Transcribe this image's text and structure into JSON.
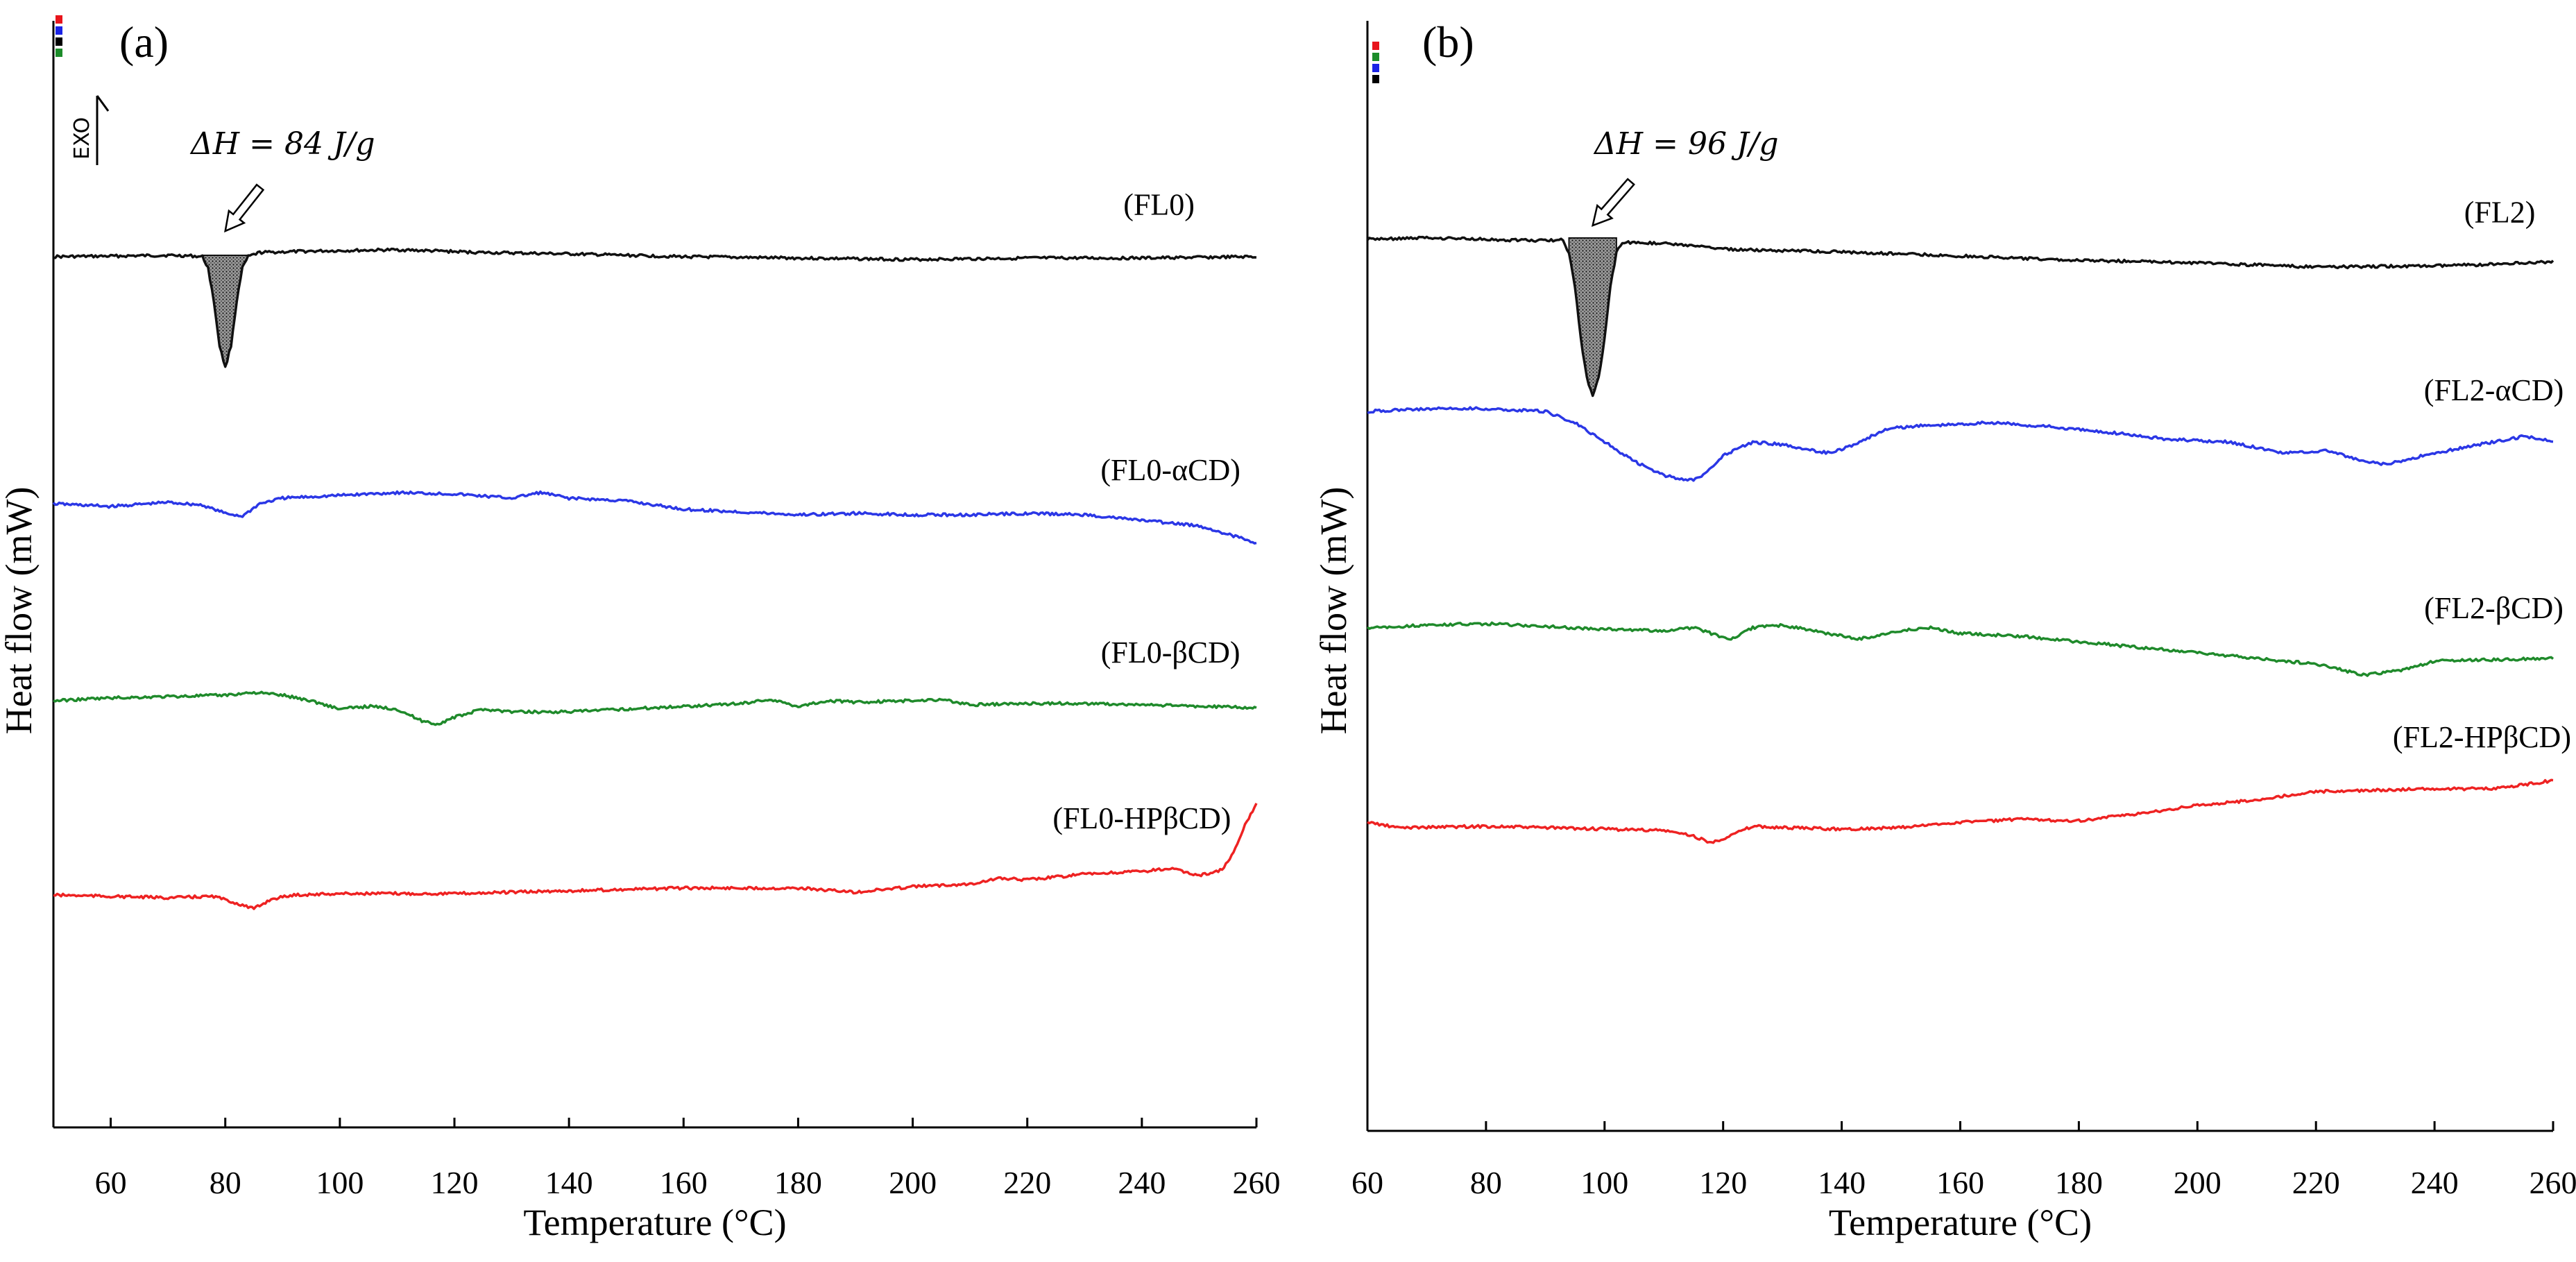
{
  "chart_data": [
    {
      "type": "line",
      "panel_label": "(a)",
      "xlabel": "Temperature (°C)",
      "ylabel": "Heat flow (mW)",
      "xlim": [
        50,
        260
      ],
      "x_ticks": [
        "60",
        "80",
        "100",
        "120",
        "140",
        "160",
        "180",
        "200",
        "220",
        "240",
        "260"
      ],
      "exo_label": "EXO",
      "enthalpy_annotation": "ΔH = 84 J/g",
      "peak_marker": {
        "x": 80,
        "width": 7
      },
      "legend_swatches": [
        "#e8141b",
        "#1a23e6",
        "#000000",
        "#1c8c2a"
      ],
      "series": [
        {
          "name": "(FL0)",
          "color": "#111111",
          "offset": 0.0,
          "label_x": 243,
          "points": [
            [
              50,
              0.0
            ],
            [
              60,
              0.02
            ],
            [
              70,
              0.05
            ],
            [
              74,
              0.03
            ],
            [
              76,
              0.0
            ],
            [
              77,
              -0.4
            ],
            [
              78,
              -1.6
            ],
            [
              79,
              -3.2
            ],
            [
              80,
              -4.0
            ],
            [
              81,
              -3.2
            ],
            [
              82,
              -1.6
            ],
            [
              83,
              -0.4
            ],
            [
              84,
              0.0
            ],
            [
              86,
              0.15
            ],
            [
              95,
              0.2
            ],
            [
              110,
              0.25
            ],
            [
              125,
              0.15
            ],
            [
              140,
              0.1
            ],
            [
              160,
              0.0
            ],
            [
              180,
              -0.05
            ],
            [
              200,
              -0.1
            ],
            [
              220,
              -0.05
            ],
            [
              240,
              -0.05
            ],
            [
              260,
              0.0
            ]
          ]
        },
        {
          "name": "(FL0-αCD)",
          "color": "#2b37e6",
          "offset": -9.0,
          "label_x": 245,
          "points": [
            [
              50,
              0.1
            ],
            [
              60,
              0.0
            ],
            [
              70,
              0.15
            ],
            [
              76,
              0.05
            ],
            [
              80,
              -0.25
            ],
            [
              83,
              -0.35
            ],
            [
              86,
              0.1
            ],
            [
              90,
              0.3
            ],
            [
              100,
              0.4
            ],
            [
              110,
              0.5
            ],
            [
              120,
              0.45
            ],
            [
              130,
              0.3
            ],
            [
              135,
              0.5
            ],
            [
              140,
              0.3
            ],
            [
              150,
              0.2
            ],
            [
              160,
              -0.1
            ],
            [
              170,
              -0.2
            ],
            [
              180,
              -0.3
            ],
            [
              190,
              -0.25
            ],
            [
              200,
              -0.3
            ],
            [
              210,
              -0.3
            ],
            [
              220,
              -0.25
            ],
            [
              230,
              -0.3
            ],
            [
              240,
              -0.5
            ],
            [
              250,
              -0.7
            ],
            [
              260,
              -1.3
            ]
          ]
        },
        {
          "name": "(FL0-βCD)",
          "color": "#1f8a2b",
          "offset": -16.0,
          "label_x": 245,
          "points": [
            [
              50,
              0.0
            ],
            [
              60,
              0.1
            ],
            [
              70,
              0.15
            ],
            [
              80,
              0.2
            ],
            [
              85,
              0.3
            ],
            [
              90,
              0.2
            ],
            [
              95,
              0.0
            ],
            [
              100,
              -0.3
            ],
            [
              105,
              -0.2
            ],
            [
              110,
              -0.3
            ],
            [
              114,
              -0.7
            ],
            [
              117,
              -0.85
            ],
            [
              120,
              -0.6
            ],
            [
              125,
              -0.3
            ],
            [
              130,
              -0.4
            ],
            [
              140,
              -0.4
            ],
            [
              150,
              -0.3
            ],
            [
              160,
              -0.2
            ],
            [
              170,
              -0.1
            ],
            [
              175,
              0.05
            ],
            [
              180,
              -0.2
            ],
            [
              185,
              0.0
            ],
            [
              190,
              -0.05
            ],
            [
              200,
              0.0
            ],
            [
              205,
              0.05
            ],
            [
              210,
              -0.15
            ],
            [
              220,
              -0.1
            ],
            [
              230,
              -0.1
            ],
            [
              240,
              -0.15
            ],
            [
              250,
              -0.2
            ],
            [
              260,
              -0.25
            ]
          ]
        },
        {
          "name": "(FL0-HPβCD)",
          "color": "#ee2222",
          "offset": -23.0,
          "label_x": 240,
          "points": [
            [
              50,
              0.0
            ],
            [
              60,
              -0.05
            ],
            [
              70,
              -0.1
            ],
            [
              78,
              -0.05
            ],
            [
              82,
              -0.3
            ],
            [
              85,
              -0.5
            ],
            [
              88,
              -0.15
            ],
            [
              92,
              0.0
            ],
            [
              100,
              0.05
            ],
            [
              120,
              0.05
            ],
            [
              140,
              0.15
            ],
            [
              160,
              0.25
            ],
            [
              180,
              0.25
            ],
            [
              190,
              0.1
            ],
            [
              200,
              0.3
            ],
            [
              210,
              0.4
            ],
            [
              215,
              0.6
            ],
            [
              220,
              0.55
            ],
            [
              230,
              0.75
            ],
            [
              240,
              0.85
            ],
            [
              245,
              0.95
            ],
            [
              250,
              0.7
            ],
            [
              254,
              0.9
            ],
            [
              256,
              1.5
            ],
            [
              258,
              2.5
            ],
            [
              260,
              3.3
            ]
          ]
        }
      ]
    },
    {
      "type": "line",
      "panel_label": "(b)",
      "xlabel": "Temperature (°C)",
      "ylabel": "Heat flow (mW)",
      "xlim": [
        60,
        260
      ],
      "x_ticks": [
        "60",
        "80",
        "100",
        "120",
        "140",
        "160",
        "180",
        "200",
        "220",
        "240",
        "260"
      ],
      "enthalpy_annotation": "ΔH = 96 J/g",
      "peak_marker": {
        "x": 98,
        "width": 7
      },
      "legend_swatches": [
        "#e8141b",
        "#1c8c2a",
        "#1a23e6",
        "#000000"
      ],
      "series": [
        {
          "name": "(FL2)",
          "color": "#111111",
          "offset": 0.0,
          "label_x": 251,
          "points": [
            [
              60,
              0.0
            ],
            [
              70,
              0.05
            ],
            [
              80,
              0.0
            ],
            [
              90,
              -0.05
            ],
            [
              93,
              0.0
            ],
            [
              94,
              -0.5
            ],
            [
              95,
              -1.7
            ],
            [
              96,
              -3.6
            ],
            [
              97,
              -5.0
            ],
            [
              98,
              -5.6
            ],
            [
              99,
              -5.0
            ],
            [
              100,
              -3.6
            ],
            [
              101,
              -1.7
            ],
            [
              102,
              -0.5
            ],
            [
              103,
              -0.1
            ],
            [
              110,
              -0.15
            ],
            [
              120,
              -0.35
            ],
            [
              140,
              -0.45
            ],
            [
              160,
              -0.6
            ],
            [
              180,
              -0.75
            ],
            [
              200,
              -0.85
            ],
            [
              220,
              -1.0
            ],
            [
              240,
              -0.95
            ],
            [
              250,
              -0.9
            ],
            [
              260,
              -0.8
            ]
          ]
        },
        {
          "name": "(FL2-αCD)",
          "color": "#2b37e6",
          "offset": -6.2,
          "label_x": 250,
          "points": [
            [
              60,
              0.0
            ],
            [
              70,
              0.1
            ],
            [
              80,
              0.1
            ],
            [
              90,
              0.0
            ],
            [
              95,
              -0.4
            ],
            [
              100,
              -1.1
            ],
            [
              105,
              -1.8
            ],
            [
              110,
              -2.3
            ],
            [
              114,
              -2.5
            ],
            [
              116,
              -2.4
            ],
            [
              120,
              -1.6
            ],
            [
              125,
              -1.1
            ],
            [
              130,
              -1.2
            ],
            [
              135,
              -1.4
            ],
            [
              138,
              -1.5
            ],
            [
              142,
              -1.2
            ],
            [
              148,
              -0.6
            ],
            [
              155,
              -0.5
            ],
            [
              165,
              -0.4
            ],
            [
              175,
              -0.55
            ],
            [
              185,
              -0.75
            ],
            [
              195,
              -1.0
            ],
            [
              205,
              -1.1
            ],
            [
              215,
              -1.5
            ],
            [
              222,
              -1.4
            ],
            [
              228,
              -1.8
            ],
            [
              232,
              -1.9
            ],
            [
              238,
              -1.6
            ],
            [
              245,
              -1.3
            ],
            [
              250,
              -1.1
            ],
            [
              255,
              -0.9
            ],
            [
              260,
              -1.05
            ]
          ]
        },
        {
          "name": "(FL2-βCD)",
          "color": "#1f8a2b",
          "offset": -14.0,
          "label_x": 250,
          "points": [
            [
              60,
              0.0
            ],
            [
              70,
              0.1
            ],
            [
              80,
              0.15
            ],
            [
              90,
              0.05
            ],
            [
              100,
              -0.05
            ],
            [
              110,
              -0.1
            ],
            [
              115,
              0.0
            ],
            [
              118,
              -0.2
            ],
            [
              121,
              -0.45
            ],
            [
              125,
              0.0
            ],
            [
              130,
              0.1
            ],
            [
              135,
              -0.1
            ],
            [
              143,
              -0.4
            ],
            [
              150,
              -0.1
            ],
            [
              155,
              0.0
            ],
            [
              160,
              -0.2
            ],
            [
              170,
              -0.3
            ],
            [
              180,
              -0.5
            ],
            [
              190,
              -0.7
            ],
            [
              200,
              -0.9
            ],
            [
              210,
              -1.1
            ],
            [
              220,
              -1.3
            ],
            [
              228,
              -1.7
            ],
            [
              235,
              -1.5
            ],
            [
              240,
              -1.2
            ],
            [
              250,
              -1.15
            ],
            [
              260,
              -1.1
            ]
          ]
        },
        {
          "name": "(FL2-HPβCD)",
          "color": "#ee2222",
          "offset": -21.0,
          "label_x": 248,
          "points": [
            [
              60,
              0.0
            ],
            [
              65,
              -0.2
            ],
            [
              80,
              -0.15
            ],
            [
              90,
              -0.2
            ],
            [
              110,
              -0.3
            ],
            [
              115,
              -0.5
            ],
            [
              118,
              -0.75
            ],
            [
              121,
              -0.5
            ],
            [
              125,
              -0.15
            ],
            [
              130,
              -0.2
            ],
            [
              140,
              -0.25
            ],
            [
              150,
              -0.2
            ],
            [
              160,
              0.0
            ],
            [
              170,
              0.1
            ],
            [
              180,
              0.05
            ],
            [
              190,
              0.3
            ],
            [
              200,
              0.6
            ],
            [
              210,
              0.8
            ],
            [
              220,
              1.1
            ],
            [
              230,
              1.15
            ],
            [
              240,
              1.2
            ],
            [
              250,
              1.2
            ],
            [
              260,
              1.5
            ]
          ]
        }
      ]
    }
  ]
}
